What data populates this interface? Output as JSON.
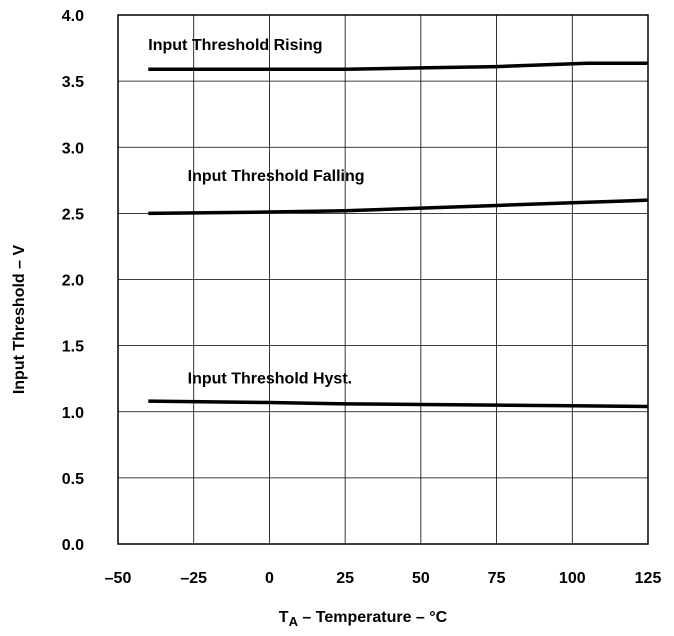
{
  "chart_data": {
    "type": "line",
    "title": "",
    "xlabel": "T",
    "xlabel_subscript": "A",
    "xlabel_suffix": " – Temperature – °C",
    "ylabel": "Input Threshold – V",
    "xlim": [
      -50,
      125
    ],
    "ylim": [
      0,
      4.0
    ],
    "xticks": [
      -50,
      -25,
      0,
      25,
      50,
      75,
      100,
      125
    ],
    "xtick_labels": [
      "–50",
      "–25",
      "0",
      "25",
      "50",
      "75",
      "100",
      "125"
    ],
    "yticks": [
      0,
      0.5,
      1.0,
      1.5,
      2.0,
      2.5,
      3.0,
      3.5,
      4.0
    ],
    "ytick_labels": [
      "0.0",
      "0.5",
      "1.0",
      "1.5",
      "2.0",
      "2.5",
      "3.0",
      "3.5",
      "4.0"
    ],
    "grid": true,
    "legend": "none",
    "series": [
      {
        "name": "Input Threshold Rising",
        "x": [
          -40,
          0,
          25,
          50,
          75,
          105,
          125
        ],
        "y": [
          3.59,
          3.59,
          3.59,
          3.6,
          3.61,
          3.635,
          3.635
        ]
      },
      {
        "name": "Input Threshold Falling",
        "x": [
          -40,
          0,
          25,
          50,
          75,
          100,
          125
        ],
        "y": [
          2.5,
          2.51,
          2.52,
          2.54,
          2.56,
          2.58,
          2.6
        ]
      },
      {
        "name": "Input Threshold Hyst.",
        "x": [
          -40,
          0,
          25,
          50,
          75,
          100,
          125
        ],
        "y": [
          1.08,
          1.07,
          1.06,
          1.055,
          1.05,
          1.045,
          1.04
        ]
      }
    ]
  }
}
